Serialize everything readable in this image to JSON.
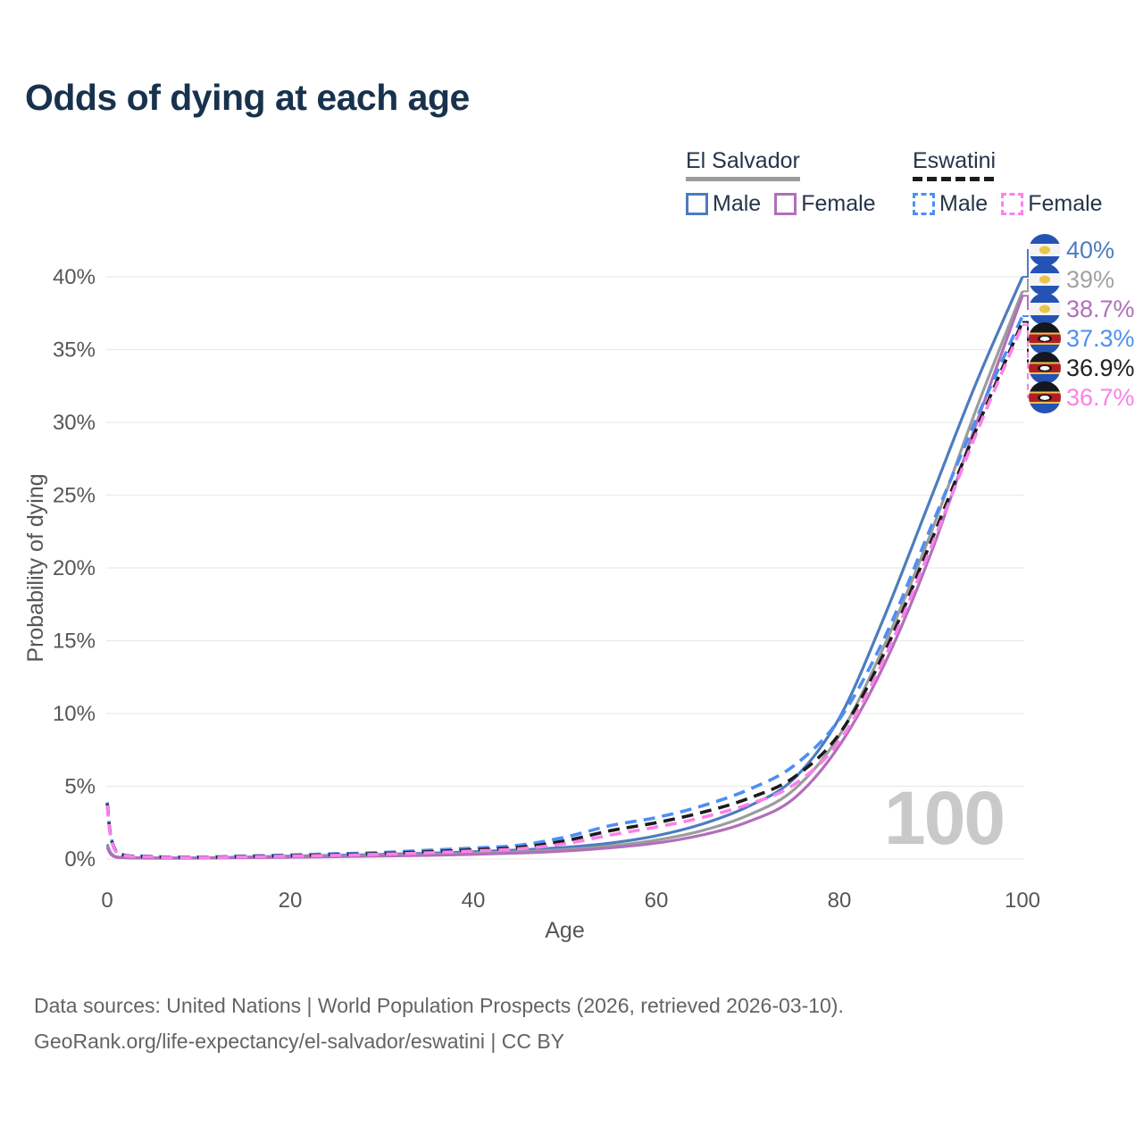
{
  "title": "Odds of dying at each age",
  "watermark_age": "100",
  "legend": {
    "groups": [
      {
        "country": "El Salvador",
        "line_style": "solid",
        "combined_line_color": "#9c9c9c",
        "items": [
          {
            "label": "Male",
            "color": "#4d7cbe"
          },
          {
            "label": "Female",
            "color": "#b16fba"
          }
        ]
      },
      {
        "country": "Eswatini",
        "line_style": "dashed",
        "combined_line_color": "#1c1c1c",
        "items": [
          {
            "label": "Male",
            "color": "#4e8ef4"
          },
          {
            "label": "Female",
            "color": "#fb80ea"
          }
        ]
      }
    ]
  },
  "footer": {
    "line1": "Data sources: United Nations | World Population Prospects (2026, retrieved 2026-03-10).",
    "line2": "GeoRank.org/life-expectancy/el-salvador/eswatini | CC BY"
  },
  "chart_data": {
    "type": "line",
    "title": "Odds of dying at each age",
    "xlabel": "Age",
    "ylabel": "Probability of dying",
    "xlim": [
      0,
      100
    ],
    "ylim_percent": [
      0,
      40
    ],
    "grid": true,
    "legend_position": "top-right",
    "xticks": [
      0,
      20,
      40,
      60,
      80,
      100
    ],
    "xtick_labels": [
      "0",
      "20",
      "40",
      "60",
      "80",
      "100"
    ],
    "yticks": [
      0,
      5,
      10,
      15,
      20,
      25,
      30,
      35,
      40
    ],
    "ytick_labels": [
      "0%",
      "5%",
      "10%",
      "15%",
      "20%",
      "25%",
      "30%",
      "35%",
      "40%"
    ],
    "x": [
      0,
      1,
      5,
      10,
      15,
      20,
      25,
      30,
      35,
      40,
      45,
      50,
      55,
      60,
      65,
      70,
      75,
      80,
      85,
      90,
      95,
      100
    ],
    "series": [
      {
        "name": "El Salvador Male",
        "country": "El Salvador",
        "group": "male",
        "dash": "solid",
        "color": "#4d7cbe",
        "flag": "el-salvador",
        "end_label": "40%",
        "end_label_color": "#4d7cbe",
        "values": [
          1.0,
          0.15,
          0.08,
          0.08,
          0.13,
          0.2,
          0.26,
          0.32,
          0.4,
          0.5,
          0.62,
          0.8,
          1.1,
          1.6,
          2.4,
          3.6,
          5.5,
          9.7,
          16.8,
          24.8,
          32.8,
          40.0
        ]
      },
      {
        "name": "El Salvador Both sexes",
        "country": "El Salvador",
        "group": "both",
        "dash": "solid",
        "color": "#9c9c9c",
        "flag": "el-salvador",
        "end_label": "39%",
        "end_label_color": "#a2a2a2",
        "values": [
          0.9,
          0.13,
          0.07,
          0.07,
          0.11,
          0.16,
          0.21,
          0.26,
          0.32,
          0.4,
          0.5,
          0.65,
          0.9,
          1.3,
          1.95,
          3.0,
          4.75,
          8.5,
          14.8,
          22.4,
          31.0,
          39.0
        ]
      },
      {
        "name": "El Salvador Female",
        "country": "El Salvador",
        "group": "female",
        "dash": "solid",
        "color": "#b16fba",
        "flag": "el-salvador",
        "end_label": "38.7%",
        "end_label_color": "#b16fba",
        "values": [
          0.8,
          0.12,
          0.06,
          0.06,
          0.09,
          0.12,
          0.16,
          0.2,
          0.25,
          0.32,
          0.41,
          0.55,
          0.77,
          1.1,
          1.65,
          2.55,
          4.15,
          7.8,
          13.5,
          21.0,
          30.0,
          38.7
        ]
      },
      {
        "name": "Eswatini Male",
        "country": "Eswatini",
        "group": "male",
        "dash": "dashed",
        "color": "#4e8ef4",
        "flag": "eswatini",
        "end_label": "37.3%",
        "end_label_color": "#4e8ef4",
        "values": [
          3.9,
          0.55,
          0.18,
          0.13,
          0.2,
          0.28,
          0.36,
          0.45,
          0.6,
          0.75,
          0.95,
          1.5,
          2.3,
          2.85,
          3.65,
          4.75,
          6.4,
          9.6,
          15.3,
          22.8,
          30.3,
          37.3
        ]
      },
      {
        "name": "Eswatini Both sexes",
        "country": "Eswatini",
        "group": "both",
        "dash": "dashed",
        "color": "#1c1c1c",
        "flag": "eswatini",
        "end_label": "36.9%",
        "end_label_color": "#222222",
        "values": [
          3.8,
          0.5,
          0.16,
          0.11,
          0.17,
          0.23,
          0.3,
          0.38,
          0.5,
          0.63,
          0.8,
          1.25,
          1.95,
          2.5,
          3.2,
          4.15,
          5.6,
          8.6,
          14.3,
          21.8,
          29.6,
          36.9
        ]
      },
      {
        "name": "Eswatini Female",
        "country": "Eswatini",
        "group": "female",
        "dash": "dashed",
        "color": "#fb80ea",
        "flag": "eswatini",
        "end_label": "36.7%",
        "end_label_color": "#fb80ea",
        "values": [
          3.7,
          0.48,
          0.15,
          0.1,
          0.15,
          0.2,
          0.26,
          0.33,
          0.43,
          0.55,
          0.7,
          1.05,
          1.65,
          2.2,
          2.85,
          3.75,
          5.1,
          8.1,
          13.9,
          21.4,
          29.3,
          36.7
        ]
      }
    ]
  }
}
